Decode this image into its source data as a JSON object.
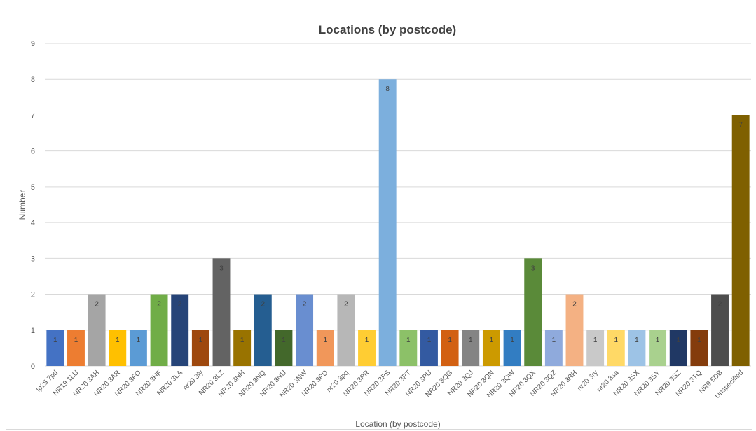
{
  "chart_data": {
    "type": "bar",
    "title": "Locations (by postcode)",
    "xlabel": "Location (by postcode)",
    "ylabel": "Number",
    "ylim": [
      0,
      9
    ],
    "yticks": [
      0,
      1,
      2,
      3,
      4,
      5,
      6,
      7,
      8,
      9
    ],
    "grid": true,
    "legend": "none",
    "categories": [
      "Ip25 7pd",
      "NR19 1LU",
      "NR20 3AH",
      "NR20 3AR",
      "NR20 3FO",
      "NR20 3HF",
      "NR20 3LA",
      "nr20 3ly",
      "NR20 3LZ",
      "NR20 3NH",
      "NR20 3NQ",
      "NR20 3NU",
      "NR20 3NW",
      "NR20 3PD",
      "nr20 3pq",
      "NR20 3PR",
      "NR20 3PS",
      "NR20 3PT",
      "NR20 3PU",
      "NR20 3QG",
      "NR20 3QJ",
      "NR20 3QN",
      "NR20 3QW",
      "NR20 3QX",
      "NR20 3QZ",
      "NR20 3RH",
      "nr20 3ry",
      "nr20 3sa",
      "NR20 3SX",
      "NR20 3SY",
      "NR20 3SZ",
      "NR20 3TQ",
      "NR9 5DB",
      "Unspecified"
    ],
    "values": [
      1,
      1,
      2,
      1,
      1,
      2,
      2,
      1,
      3,
      1,
      2,
      1,
      2,
      1,
      2,
      1,
      8,
      1,
      1,
      1,
      1,
      1,
      1,
      3,
      1,
      2,
      1,
      1,
      1,
      1,
      1,
      1,
      2,
      7
    ],
    "colors": [
      "#4472c4",
      "#ed7d31",
      "#a5a5a5",
      "#ffc000",
      "#5b9bd5",
      "#70ad47",
      "#264478",
      "#9e480e",
      "#636363",
      "#997300",
      "#255e91",
      "#43682b",
      "#698ed0",
      "#f1975a",
      "#b7b7b7",
      "#ffcd33",
      "#7cafdd",
      "#8cc168",
      "#335aa1",
      "#d26012",
      "#848484",
      "#cc9a00",
      "#327dc2",
      "#5a8a39",
      "#8faadc",
      "#f4b183",
      "#c9c9c9",
      "#ffd966",
      "#9dc3e6",
      "#a9d18e",
      "#203864",
      "#843c0c",
      "#4d4d4d",
      "#7f6000"
    ],
    "gridline_color": "#d9d9d9"
  }
}
